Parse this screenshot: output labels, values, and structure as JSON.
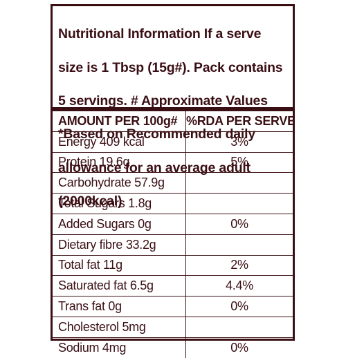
{
  "header_text": "Nutritional Information If a serve size is 1 Tbsp (15g#). Pack contains 5 servings. # Approximate Values *Based on Recommended daily allowance for an average adult (2000kcal)",
  "header_lines": [
    "Nutritional Information If a serve",
    "size is 1 Tbsp (15g#). Pack contains",
    "5 servings. # Approximate Values",
    "*Based on Recommended daily",
    "allowance for an average adult",
    "(2000kcal)"
  ],
  "table": {
    "columns": [
      "AMOUNT PER 100g#",
      "%RDA PER SERVE*"
    ],
    "rows": [
      {
        "nutrient": "Energy 409 kcal",
        "rda": "3%"
      },
      {
        "nutrient": "Protein 19.6g",
        "rda": "5%"
      },
      {
        "nutrient": "Carbohydrate 57.9g",
        "rda": ""
      },
      {
        "nutrient": "Total Sugars 1.8g",
        "rda": ""
      },
      {
        "nutrient": "Added Sugars 0g",
        "rda": "0%"
      },
      {
        "nutrient": "Dietary fibre 33.2g",
        "rda": ""
      },
      {
        "nutrient": "Total fat 11g",
        "rda": "2%"
      },
      {
        "nutrient": "Saturated fat 6.5g",
        "rda": "4.4%"
      },
      {
        "nutrient": "Trans fat 0g",
        "rda": "0%"
      },
      {
        "nutrient": "Cholesterol 5mg",
        "rda": ""
      },
      {
        "nutrient": "Sodium 4mg",
        "rda": "0%"
      }
    ]
  },
  "colors": {
    "text": "#3a0f14",
    "border": "#3a0f14",
    "background": "#ffffff"
  }
}
